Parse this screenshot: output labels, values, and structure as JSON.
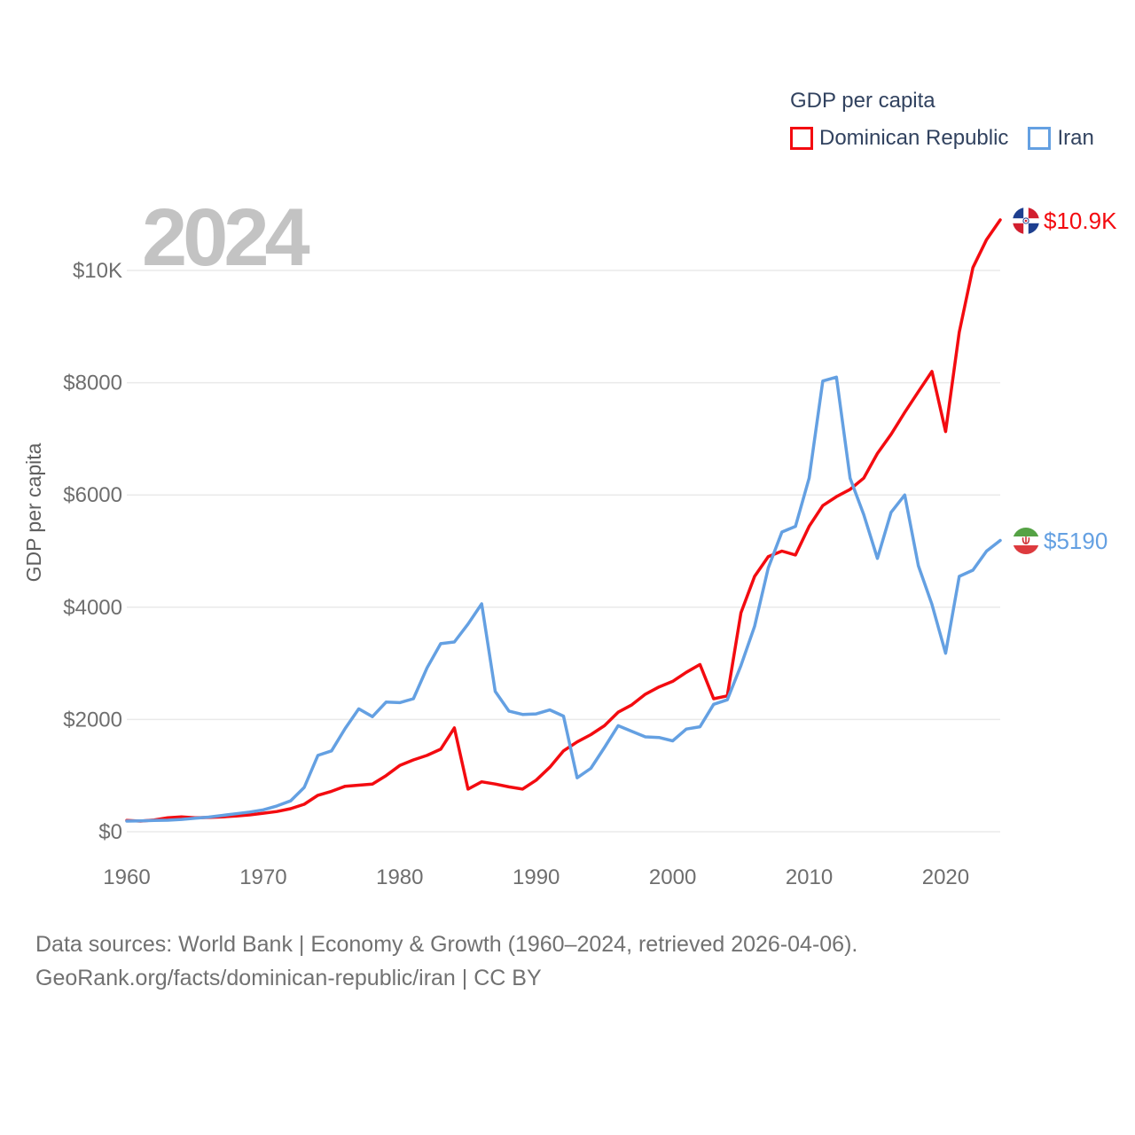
{
  "watermark": "2024",
  "legend": {
    "title": "GDP per capita",
    "items": [
      {
        "label": "Dominican Republic",
        "color": "#f30b10"
      },
      {
        "label": "Iran",
        "color": "#64a0e2"
      }
    ]
  },
  "end_labels": [
    {
      "series": "Dominican Republic",
      "value": "$10.9K",
      "color": "#f30b10",
      "flag": "dominican-republic-flag"
    },
    {
      "series": "Iran",
      "value": "$5190",
      "color": "#64a0e2",
      "flag": "iran-flag"
    }
  ],
  "y_axis": {
    "title": "GDP per capita"
  },
  "footer": {
    "line1": "Data sources: World Bank | Economy & Growth (1960–2024, retrieved 2026-04-06).",
    "line2": "GeoRank.org/facts/dominican-republic/iran | CC BY"
  },
  "chart_data": {
    "type": "line",
    "title": "GDP per capita",
    "xlabel": "",
    "ylabel": "GDP per capita",
    "grid": "horizontal",
    "legend_position": "top-right",
    "xlim": [
      1960,
      2024
    ],
    "ylim": [
      0,
      10900
    ],
    "x_ticks": [
      1960,
      1970,
      1980,
      1990,
      2000,
      2010,
      2020
    ],
    "y_ticks": [
      {
        "value": 0,
        "label": "$0"
      },
      {
        "value": 2000,
        "label": "$2000"
      },
      {
        "value": 4000,
        "label": "$4000"
      },
      {
        "value": 6000,
        "label": "$6000"
      },
      {
        "value": 8000,
        "label": "$8000"
      },
      {
        "value": 10000,
        "label": "$10K"
      }
    ],
    "x": [
      1960,
      1961,
      1962,
      1963,
      1964,
      1965,
      1966,
      1967,
      1968,
      1969,
      1970,
      1971,
      1972,
      1973,
      1974,
      1975,
      1976,
      1977,
      1978,
      1979,
      1980,
      1981,
      1982,
      1983,
      1984,
      1985,
      1986,
      1987,
      1988,
      1989,
      1990,
      1991,
      1992,
      1993,
      1994,
      1995,
      1996,
      1997,
      1998,
      1999,
      2000,
      2001,
      2002,
      2003,
      2004,
      2005,
      2006,
      2007,
      2008,
      2009,
      2010,
      2011,
      2012,
      2013,
      2014,
      2015,
      2016,
      2017,
      2018,
      2019,
      2020,
      2021,
      2022,
      2023,
      2024
    ],
    "series": [
      {
        "name": "Dominican Republic",
        "color": "#f30b10",
        "values": [
          200,
          190,
          210,
          250,
          265,
          250,
          255,
          265,
          280,
          300,
          330,
          360,
          410,
          490,
          650,
          720,
          810,
          830,
          850,
          1000,
          1180,
          1280,
          1360,
          1470,
          1850,
          760,
          890,
          850,
          800,
          760,
          920,
          1150,
          1440,
          1600,
          1730,
          1890,
          2130,
          2260,
          2450,
          2580,
          2680,
          2840,
          2980,
          2370,
          2420,
          3900,
          4550,
          4900,
          5000,
          4930,
          5440,
          5810,
          5970,
          6100,
          6300,
          6740,
          7080,
          7470,
          7840,
          8200,
          7130,
          8900,
          10050,
          10550,
          10900
        ]
      },
      {
        "name": "Iran",
        "color": "#64a0e2",
        "values": [
          190,
          195,
          200,
          205,
          220,
          240,
          260,
          290,
          320,
          350,
          390,
          460,
          550,
          790,
          1360,
          1440,
          1840,
          2190,
          2050,
          2310,
          2300,
          2370,
          2920,
          3350,
          3380,
          3700,
          4060,
          2500,
          2150,
          2090,
          2100,
          2170,
          2060,
          960,
          1130,
          1500,
          1890,
          1790,
          1690,
          1680,
          1620,
          1830,
          1870,
          2270,
          2350,
          2960,
          3660,
          4700,
          5340,
          5440,
          6300,
          8030,
          8100,
          6300,
          5650,
          4870,
          5690,
          6000,
          4740,
          4050,
          3180,
          4550,
          4660,
          5000,
          5190
        ]
      }
    ]
  }
}
